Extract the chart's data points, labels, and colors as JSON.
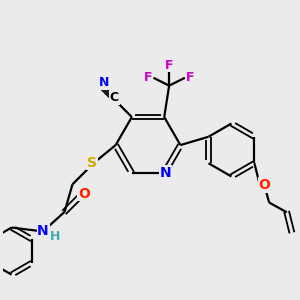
{
  "background_color": "#ebebeb",
  "atom_colors": {
    "C": "#000000",
    "N": "#0000ff",
    "O": "#ff2200",
    "S": "#ccaa00",
    "F": "#cc00cc",
    "H": "#44aaaa"
  },
  "bond_color": "#000000",
  "figsize": [
    3.0,
    3.0
  ],
  "dpi": 100
}
